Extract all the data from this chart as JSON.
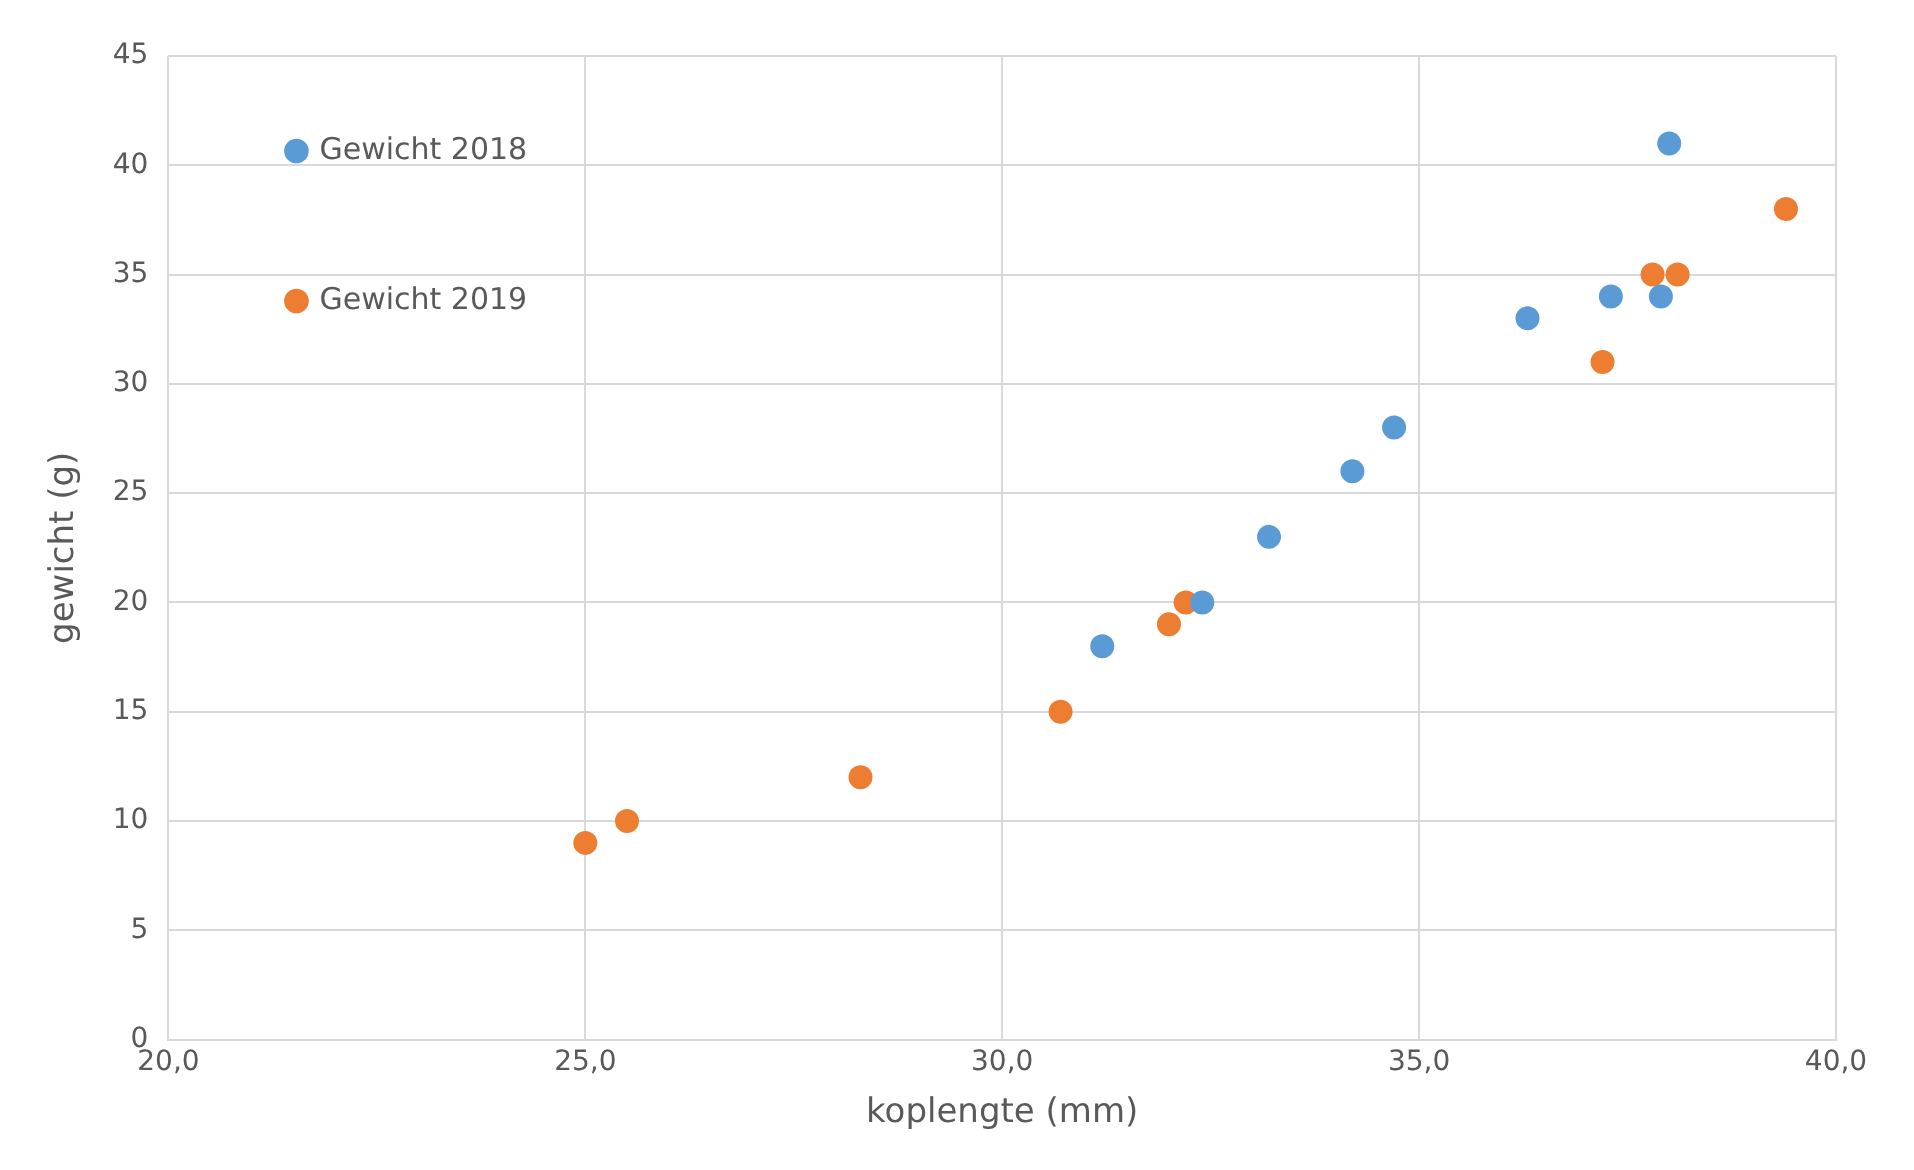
{
  "chart_data": {
    "type": "scatter",
    "xlabel": "koplengte (mm)",
    "ylabel": "gewicht (g)",
    "xlim": [
      20,
      40
    ],
    "xticks": [
      {
        "value": 20,
        "label": "20,0"
      },
      {
        "value": 25,
        "label": "25,0"
      },
      {
        "value": 30,
        "label": "30,0"
      },
      {
        "value": 35,
        "label": "35,0"
      },
      {
        "value": 40,
        "label": "40,0"
      }
    ],
    "ylim": [
      0,
      45
    ],
    "yticks": [
      0,
      5,
      10,
      15,
      20,
      25,
      30,
      35,
      40,
      45
    ],
    "grid": true,
    "legend": "top left",
    "marker": "circle",
    "series": [
      {
        "name": "Gewicht 2018",
        "color": "#5b9bd5",
        "x": [
          31.2,
          32.4,
          33.2,
          34.2,
          34.7,
          36.3,
          37.3,
          37.9,
          38.0
        ],
        "values": [
          18,
          20,
          23,
          26,
          28,
          33,
          34,
          34,
          41
        ]
      },
      {
        "name": "Gewicht 2019",
        "color": "#ed7d31",
        "x": [
          25.0,
          25.5,
          28.3,
          30.7,
          32.0,
          32.2,
          37.2,
          37.8,
          38.1,
          39.4
        ],
        "values": [
          9,
          10,
          12,
          15,
          19,
          20,
          31,
          35,
          35,
          38
        ]
      }
    ]
  }
}
